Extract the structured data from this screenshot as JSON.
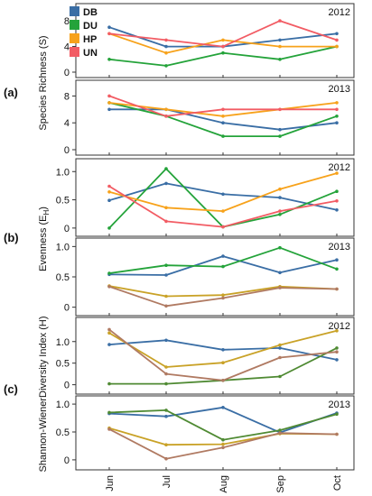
{
  "x_categories": [
    "Jun",
    "Jul",
    "Aug",
    "Sep",
    "Oct"
  ],
  "group_labels": [
    "(a)",
    "(b)",
    "(c)"
  ],
  "group_ylabels": [
    "Species Richness (S)",
    "Evenness (E",
    "Shannon-WienerDiversity  Index (H)"
  ],
  "evenness_subscript": "H",
  "evenness_close": ")",
  "legend": [
    {
      "label": "DB",
      "color": "#3a6ea5"
    },
    {
      "label": "DU",
      "color": "#24a33a"
    },
    {
      "label": "HP",
      "color": "#f7a21b"
    },
    {
      "label": "UN",
      "color": "#f25c64"
    }
  ],
  "chart_data": [
    {
      "type": "line",
      "group": "(a)",
      "year": "2012",
      "ylim": [
        0,
        9
      ],
      "yticks": [
        0,
        4,
        8
      ],
      "categories": [
        "Jun",
        "Jul",
        "Aug",
        "Sep",
        "Oct"
      ],
      "series": [
        {
          "name": "DB",
          "color": "#3a6ea5",
          "values": [
            7,
            4,
            4,
            5,
            6
          ]
        },
        {
          "name": "DU",
          "color": "#24a33a",
          "values": [
            2,
            1,
            3,
            2,
            4
          ]
        },
        {
          "name": "HP",
          "color": "#f7a21b",
          "values": [
            6,
            3,
            5,
            4,
            4
          ]
        },
        {
          "name": "UN",
          "color": "#f25c64",
          "values": [
            6,
            5,
            4,
            8,
            5
          ]
        }
      ]
    },
    {
      "type": "line",
      "group": "(a)",
      "year": "2013",
      "ylim": [
        0,
        9
      ],
      "yticks": [
        0,
        4,
        8
      ],
      "categories": [
        "Jun",
        "Jul",
        "Aug",
        "Sep",
        "Oct"
      ],
      "series": [
        {
          "name": "DB",
          "color": "#3a6ea5",
          "values": [
            6,
            6,
            4,
            3,
            4
          ]
        },
        {
          "name": "DU",
          "color": "#24a33a",
          "values": [
            7,
            5,
            2,
            2,
            5
          ]
        },
        {
          "name": "HP",
          "color": "#f7a21b",
          "values": [
            7,
            6,
            5,
            6,
            7
          ]
        },
        {
          "name": "UN",
          "color": "#f25c64",
          "values": [
            8,
            5,
            6,
            6,
            6
          ]
        }
      ]
    },
    {
      "type": "line",
      "group": "(b)",
      "year": "2012",
      "ylim": [
        -0.05,
        1.1
      ],
      "yticks": [
        0,
        0.5,
        1.0
      ],
      "yticklabels": [
        "0",
        "0.5",
        "1.0"
      ],
      "categories": [
        "Jun",
        "Jul",
        "Aug",
        "Sep",
        "Oct"
      ],
      "series": [
        {
          "name": "DB",
          "color": "#3a6ea5",
          "values": [
            0.49,
            0.79,
            0.6,
            0.54,
            0.32
          ]
        },
        {
          "name": "DU",
          "color": "#24a33a",
          "values": [
            0.0,
            1.05,
            0.02,
            0.24,
            0.65
          ]
        },
        {
          "name": "HP",
          "color": "#f7a21b",
          "values": [
            0.64,
            0.36,
            0.3,
            0.69,
            0.97
          ]
        },
        {
          "name": "UN",
          "color": "#f25c64",
          "values": [
            0.74,
            0.12,
            0.02,
            0.3,
            0.48
          ]
        }
      ]
    },
    {
      "type": "line",
      "group": "(b)",
      "year": "2013",
      "ylim": [
        -0.05,
        1.05
      ],
      "yticks": [
        0,
        0.5,
        1.0
      ],
      "yticklabels": [
        "0",
        "0.5",
        "1.0"
      ],
      "categories": [
        "Jun",
        "Jul",
        "Aug",
        "Sep",
        "Oct"
      ],
      "series": [
        {
          "name": "DB",
          "color": "#3a6ea5",
          "values": [
            0.54,
            0.53,
            0.84,
            0.57,
            0.78
          ]
        },
        {
          "name": "DU",
          "color": "#24a33a",
          "values": [
            0.56,
            0.69,
            0.67,
            0.98,
            0.63
          ]
        },
        {
          "name": "HP",
          "color": "#c9a227",
          "values": [
            0.35,
            0.18,
            0.2,
            0.34,
            0.3
          ]
        },
        {
          "name": "UN",
          "color": "#b07a62",
          "values": [
            0.34,
            0.02,
            0.15,
            0.32,
            0.3
          ]
        }
      ]
    },
    {
      "type": "line",
      "group": "(c)",
      "year": "2012",
      "ylim": [
        -0.05,
        1.35
      ],
      "yticks": [
        0,
        0.5,
        1.0
      ],
      "yticklabels": [
        "0",
        "0.5",
        "1.0"
      ],
      "categories": [
        "Jun",
        "Jul",
        "Aug",
        "Sep",
        "Oct"
      ],
      "series": [
        {
          "name": "DB",
          "color": "#3a6ea5",
          "values": [
            0.93,
            1.03,
            0.81,
            0.85,
            0.58
          ]
        },
        {
          "name": "DU",
          "color": "#4f8a33",
          "values": [
            0.02,
            0.02,
            0.1,
            0.19,
            0.85
          ]
        },
        {
          "name": "HP",
          "color": "#c9a227",
          "values": [
            1.2,
            0.41,
            0.51,
            0.92,
            1.25
          ]
        },
        {
          "name": "UN",
          "color": "#b07a62",
          "values": [
            1.28,
            0.25,
            0.1,
            0.63,
            0.76
          ]
        }
      ]
    },
    {
      "type": "line",
      "group": "(c)",
      "year": "2013",
      "ylim": [
        -0.05,
        1.05
      ],
      "yticks": [
        0,
        0.5,
        1.0
      ],
      "yticklabels": [
        "0",
        "0.5",
        "1.0"
      ],
      "categories": [
        "Jun",
        "Jul",
        "Aug",
        "Sep",
        "Oct"
      ],
      "series": [
        {
          "name": "DB",
          "color": "#3a6ea5",
          "values": [
            0.83,
            0.78,
            0.94,
            0.49,
            0.84
          ]
        },
        {
          "name": "DU",
          "color": "#4f8a33",
          "values": [
            0.85,
            0.89,
            0.36,
            0.53,
            0.82
          ]
        },
        {
          "name": "HP",
          "color": "#c9a227",
          "values": [
            0.57,
            0.27,
            0.28,
            0.47,
            0.46
          ]
        },
        {
          "name": "UN",
          "color": "#b07a62",
          "values": [
            0.55,
            0.02,
            0.22,
            0.48,
            0.46
          ]
        }
      ]
    }
  ]
}
